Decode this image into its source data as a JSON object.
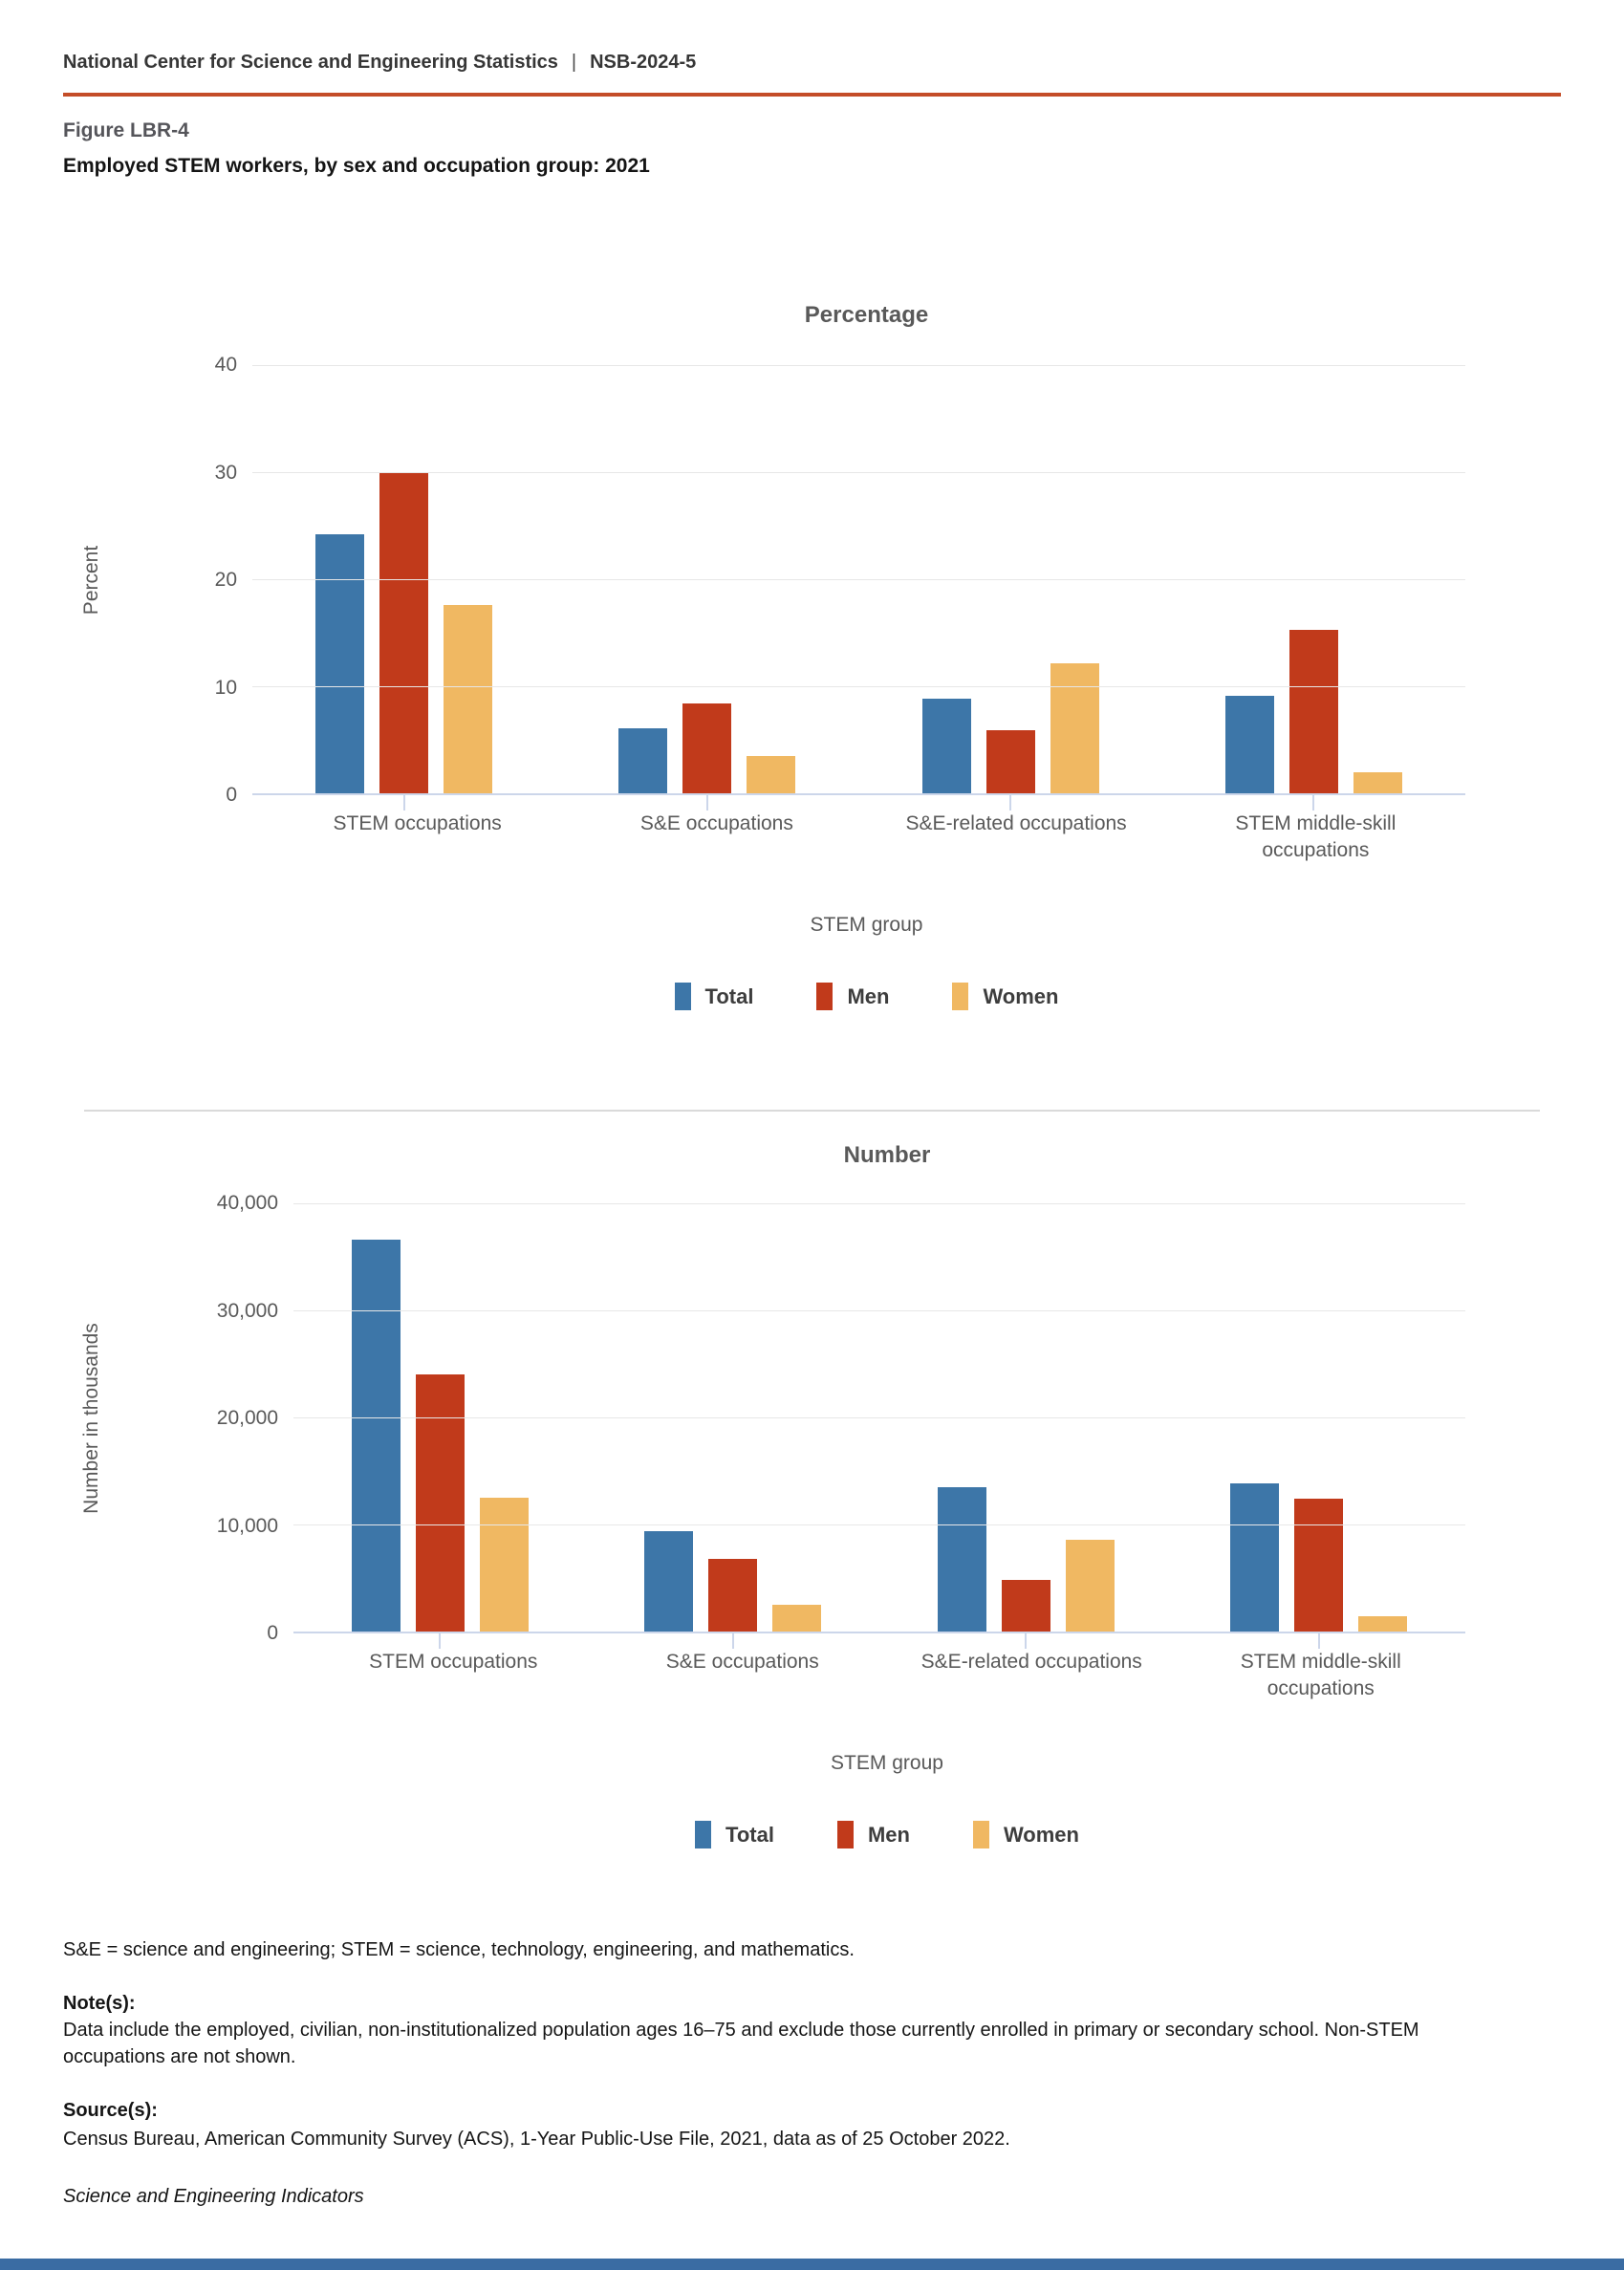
{
  "header": {
    "org": "National Center for Science and Engineering Statistics",
    "separator": "|",
    "report_id": "NSB-2024-5"
  },
  "figure": {
    "label": "Figure LBR-4",
    "title": "Employed STEM workers, by sex and occupation group: 2021"
  },
  "chart_data": [
    {
      "type": "bar",
      "title": "Percentage",
      "xlabel": "STEM group",
      "ylabel": "Percent",
      "ylim": [
        0,
        40
      ],
      "ytick_step": 10,
      "yticks": [
        "0",
        "10",
        "20",
        "30",
        "40"
      ],
      "grid": true,
      "legend_position": "bottom",
      "categories": [
        "STEM occupations",
        "S&E occupations",
        "S&E-related occupations",
        "STEM middle-skill occupations"
      ],
      "series": [
        {
          "name": "Total",
          "color": "#3D76A8",
          "values": [
            24.2,
            6.1,
            8.8,
            9.1
          ]
        },
        {
          "name": "Men",
          "color": "#C13A1B",
          "values": [
            29.9,
            8.4,
            5.9,
            15.3
          ]
        },
        {
          "name": "Women",
          "color": "#F0B862",
          "values": [
            17.6,
            3.5,
            12.1,
            2.0
          ]
        }
      ]
    },
    {
      "type": "bar",
      "title": "Number",
      "xlabel": "STEM group",
      "ylabel": "Number in thousands",
      "ylim": [
        0,
        40000
      ],
      "ytick_step": 10000,
      "yticks": [
        "0",
        "10,000",
        "20,000",
        "30,000",
        "40,000"
      ],
      "grid": true,
      "legend_position": "bottom",
      "categories": [
        "STEM occupations",
        "S&E occupations",
        "S&E-related occupations",
        "STEM middle-skill occupations"
      ],
      "series": [
        {
          "name": "Total",
          "color": "#3D76A8",
          "values": [
            36600,
            9400,
            13500,
            13800
          ]
        },
        {
          "name": "Men",
          "color": "#C13A1B",
          "values": [
            24000,
            6800,
            4800,
            12400
          ]
        },
        {
          "name": "Women",
          "color": "#F0B862",
          "values": [
            12500,
            2500,
            8600,
            1400
          ]
        }
      ]
    }
  ],
  "footnotes": {
    "abbreviations": "S&E = science and engineering; STEM = science, technology, engineering, and mathematics.",
    "notes_label": "Note(s):",
    "notes": "Data include the employed, civilian, non-institutionalized population ages 16–75 and exclude those currently enrolled in primary or secondary school. Non-STEM occupations are not shown.",
    "source_label": "Source(s):",
    "source": "Census Bureau, American Community Survey (ACS), 1-Year Public-Use File, 2021, data as of 25 October 2022.",
    "publication": "Science and Engineering Indicators"
  },
  "colors": {
    "accent_rule": "#C44D28",
    "footer_bar": "#3A6CA3",
    "axis_line": "#CCD6EA",
    "gridline": "#E7E7E7",
    "total": "#3D76A8",
    "men": "#C13A1B",
    "women": "#F0B862"
  }
}
